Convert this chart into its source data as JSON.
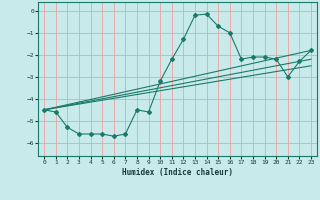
{
  "xlabel": "Humidex (Indice chaleur)",
  "ylabel": "",
  "bg_color": "#c8eaea",
  "grid_color": "#f0a0a0",
  "line_color": "#1a7a6a",
  "xlim": [
    -0.5,
    23.5
  ],
  "ylim": [
    -6.6,
    0.4
  ],
  "yticks": [
    0,
    -1,
    -2,
    -3,
    -4,
    -5,
    -6
  ],
  "xticks": [
    0,
    1,
    2,
    3,
    4,
    5,
    6,
    7,
    8,
    9,
    10,
    11,
    12,
    13,
    14,
    15,
    16,
    17,
    18,
    19,
    20,
    21,
    22,
    23
  ],
  "series": {
    "main": {
      "x": [
        0,
        1,
        2,
        3,
        4,
        5,
        6,
        7,
        8,
        9,
        10,
        11,
        12,
        13,
        14,
        15,
        16,
        17,
        18,
        19,
        20,
        21,
        22,
        23
      ],
      "y": [
        -4.5,
        -4.6,
        -5.3,
        -5.6,
        -5.6,
        -5.6,
        -5.7,
        -5.6,
        -4.5,
        -4.6,
        -3.2,
        -2.2,
        -1.3,
        -0.2,
        -0.15,
        -0.7,
        -1.0,
        -2.2,
        -2.1,
        -2.1,
        -2.2,
        -3.0,
        -2.3,
        -1.8
      ]
    },
    "line1": {
      "x": [
        0,
        23
      ],
      "y": [
        -4.5,
        -1.8
      ]
    },
    "line2": {
      "x": [
        0,
        23
      ],
      "y": [
        -4.5,
        -2.2
      ]
    },
    "line3": {
      "x": [
        0,
        23
      ],
      "y": [
        -4.5,
        -2.5
      ]
    }
  }
}
